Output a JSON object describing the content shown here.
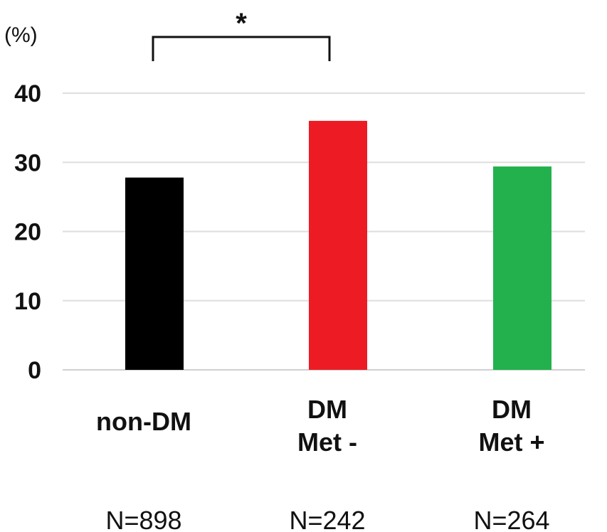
{
  "chart_data": {
    "type": "bar",
    "unit_label": "(%)",
    "categories": [
      {
        "lines": [
          "non-DM"
        ],
        "n": "N=898"
      },
      {
        "lines": [
          "DM",
          "Met -"
        ],
        "n": "N=242"
      },
      {
        "lines": [
          "DM",
          "Met +"
        ],
        "n": "N=264"
      }
    ],
    "values": [
      27.8,
      36.0,
      29.4
    ],
    "colors": [
      "#000000",
      "#ed1c24",
      "#22b14c"
    ],
    "ylim": [
      0,
      40
    ],
    "yticks": [
      0,
      10,
      20,
      30,
      40
    ],
    "grid": true,
    "significance": {
      "from": 0,
      "to": 1,
      "label": "*"
    }
  }
}
